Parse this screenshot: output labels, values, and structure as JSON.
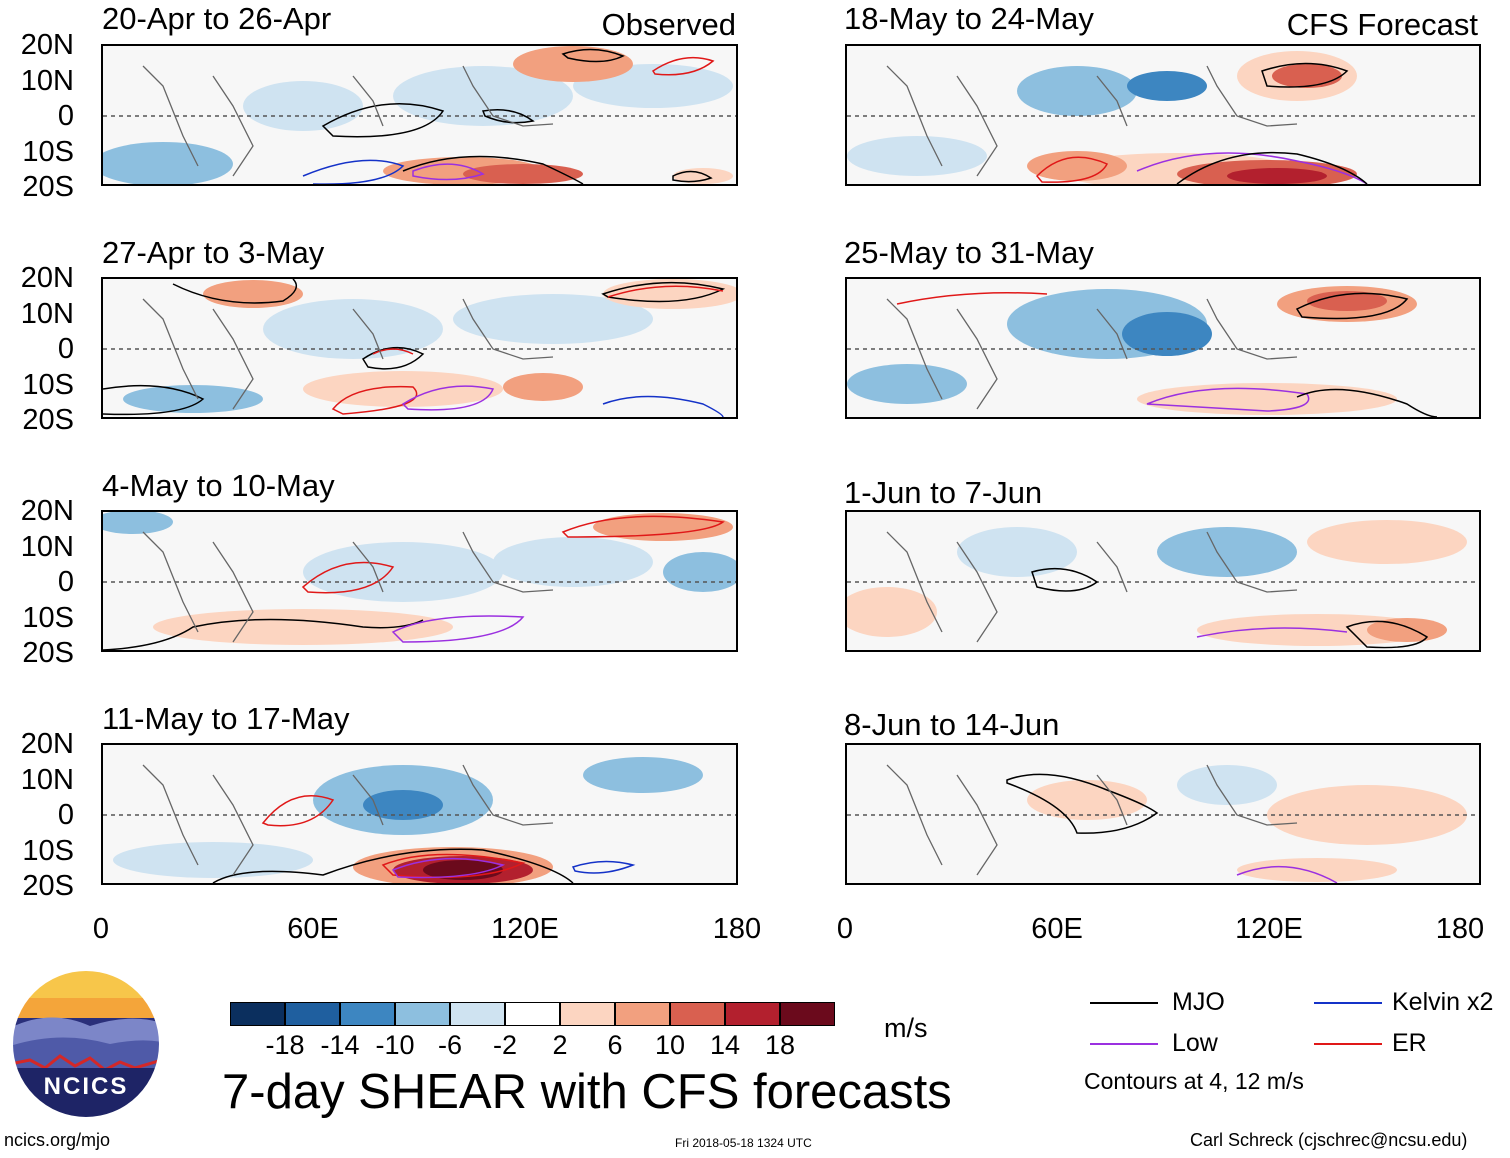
{
  "header": {
    "observed_label": "Observed",
    "forecast_label": "CFS Forecast"
  },
  "lat_labels": [
    "20N",
    "10N",
    "0",
    "10S",
    "20S"
  ],
  "lon_labels": [
    "0",
    "60E",
    "120E",
    "180"
  ],
  "panels": [
    {
      "title": "20-Apr to 26-Apr"
    },
    {
      "title": "27-Apr to 3-May"
    },
    {
      "title": "4-May to 10-May"
    },
    {
      "title": "11-May to 17-May"
    },
    {
      "title": "18-May to 24-May"
    },
    {
      "title": "25-May to 31-May"
    },
    {
      "title": "1-Jun to 7-Jun"
    },
    {
      "title": "8-Jun to 14-Jun"
    }
  ],
  "colorbar": {
    "labels": [
      "-18",
      "-14",
      "-10",
      "-6",
      "-2",
      "2",
      "6",
      "10",
      "14",
      "18"
    ],
    "colors": [
      "#0b2f5e",
      "#1f5f9f",
      "#3d86c1",
      "#8dbfdf",
      "#cfe3f1",
      "#ffffff",
      "#fcd5c1",
      "#f2a07f",
      "#d96050",
      "#b3202e",
      "#6b0a1c"
    ],
    "units": "m/s"
  },
  "main_title": "7-day SHEAR with CFS forecasts",
  "legend": {
    "items": [
      {
        "label": "MJO",
        "color": "#000000"
      },
      {
        "label": "Kelvin x2",
        "color": "#1432c8"
      },
      {
        "label": "Low",
        "color": "#9b30e0"
      },
      {
        "label": "ER",
        "color": "#e01818"
      }
    ],
    "contours_note": "Contours at 4, 12 m/s"
  },
  "footer": {
    "website": "ncics.org/mjo",
    "timestamp": "Fri 2018-05-18 1324 UTC",
    "author": "Carl Schreck (cjschrec@ncsu.edu)",
    "logo_text": "NCICS"
  }
}
